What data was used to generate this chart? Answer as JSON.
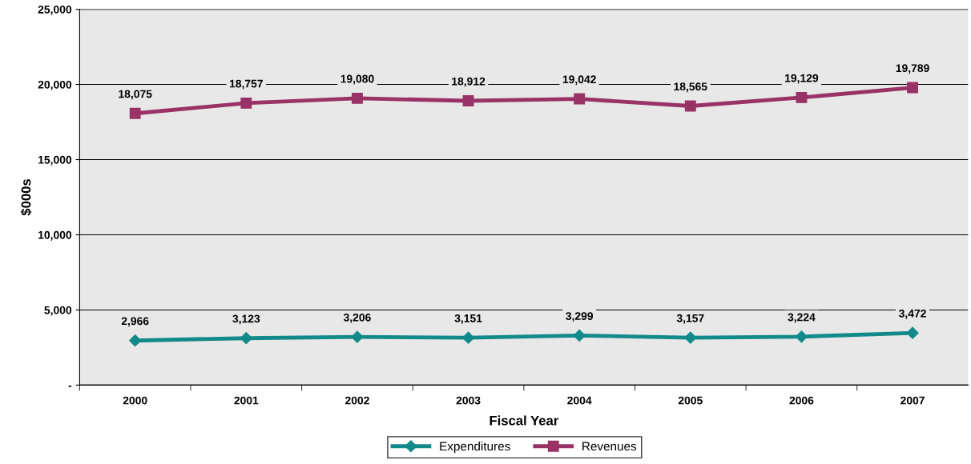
{
  "chart_data": {
    "type": "line",
    "xlabel": "Fiscal Year",
    "ylabel": "$000s",
    "categories": [
      "2000",
      "2001",
      "2002",
      "2003",
      "2004",
      "2005",
      "2006",
      "2007"
    ],
    "series": [
      {
        "name": "Expenditures",
        "color": "#138a8a",
        "marker": "diamond",
        "values": [
          2966,
          3123,
          3206,
          3151,
          3299,
          3157,
          3224,
          3472
        ],
        "value_labels": [
          "2,966",
          "3,123",
          "3,206",
          "3,151",
          "3,299",
          "3,157",
          "3,224",
          "3,472"
        ]
      },
      {
        "name": "Revenues",
        "color": "#993366",
        "marker": "square",
        "values": [
          18075,
          18757,
          19080,
          18912,
          19042,
          18565,
          19129,
          19789
        ],
        "value_labels": [
          "18,075",
          "18,757",
          "19,080",
          "18,912",
          "19,042",
          "18,565",
          "19,129",
          "19,789"
        ]
      }
    ],
    "ylim": [
      0,
      25000
    ],
    "yticks": [
      {
        "value": 0,
        "label": "-"
      },
      {
        "value": 5000,
        "label": "5,000"
      },
      {
        "value": 10000,
        "label": "10,000"
      },
      {
        "value": 15000,
        "label": "15,000"
      },
      {
        "value": 20000,
        "label": "20,000"
      },
      {
        "value": 25000,
        "label": "25,000"
      }
    ],
    "grid": "y",
    "legend": "bottom",
    "line_style": "solid"
  }
}
